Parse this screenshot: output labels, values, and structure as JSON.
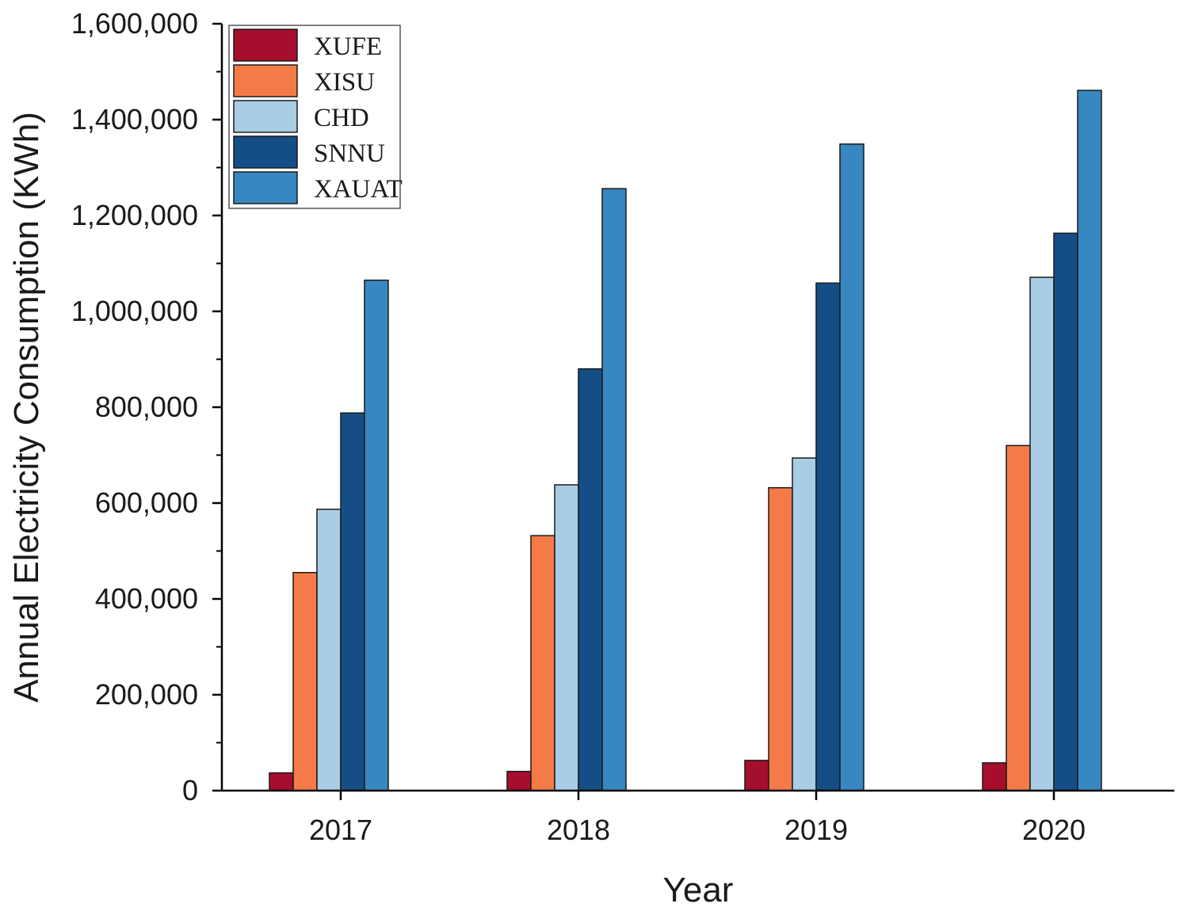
{
  "chart_data": {
    "type": "bar",
    "title": "",
    "xlabel": "Year",
    "ylabel": "Annual Electricity Consumption (KWh)",
    "categories": [
      "2017",
      "2018",
      "2019",
      "2020"
    ],
    "ylim": [
      0,
      1600000
    ],
    "yticks": [
      0,
      200000,
      400000,
      600000,
      800000,
      1000000,
      1200000,
      1400000,
      1600000
    ],
    "ytick_labels": [
      "0",
      "200,000",
      "400,000",
      "600,000",
      "800,000",
      "1,000,000",
      "1,200,000",
      "1,400,000",
      "1,600,000"
    ],
    "legend_position": "top-left",
    "grid": false,
    "series": [
      {
        "name": "XUFE",
        "color": "#a50f2d",
        "values": [
          37000,
          40000,
          63000,
          58000
        ]
      },
      {
        "name": "XISU",
        "color": "#f47b48",
        "values": [
          455000,
          532000,
          632000,
          720000
        ]
      },
      {
        "name": "CHD",
        "color": "#a8cde4",
        "values": [
          587000,
          638000,
          694000,
          1071000
        ]
      },
      {
        "name": "SNNU",
        "color": "#154e87",
        "values": [
          788000,
          880000,
          1059000,
          1163000
        ]
      },
      {
        "name": "XAUAT",
        "color": "#3787c1",
        "values": [
          1065000,
          1256000,
          1349000,
          1461000
        ]
      }
    ]
  }
}
